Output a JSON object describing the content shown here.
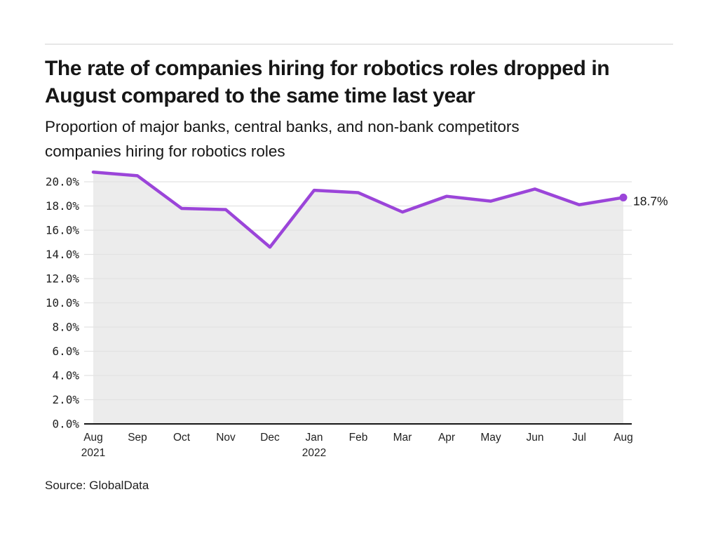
{
  "header": {
    "title": "The rate of companies hiring for robotics roles dropped in\nAugust compared to the same time last year",
    "subtitle": "Proportion of major banks, central banks, and non-bank competitors\ncompanies hiring for robotics roles"
  },
  "chart_data": {
    "type": "area",
    "title": "Proportion of major banks, central banks, and non-bank competitors companies hiring for robotics roles",
    "x": [
      "Aug 2021",
      "Sep",
      "Oct",
      "Nov",
      "Dec",
      "Jan 2022",
      "Feb",
      "Mar",
      "Apr",
      "May",
      "Jun",
      "Jul",
      "Aug"
    ],
    "x_labels": [
      [
        "Aug",
        "2021"
      ],
      [
        "Sep"
      ],
      [
        "Oct"
      ],
      [
        "Nov"
      ],
      [
        "Dec"
      ],
      [
        "Jan",
        "2022"
      ],
      [
        "Feb"
      ],
      [
        "Mar"
      ],
      [
        "Apr"
      ],
      [
        "May"
      ],
      [
        "Jun"
      ],
      [
        "Jul"
      ],
      [
        "Aug"
      ]
    ],
    "values": [
      20.8,
      20.5,
      17.8,
      17.7,
      14.6,
      19.3,
      19.1,
      17.5,
      18.8,
      18.4,
      19.4,
      18.1,
      18.7
    ],
    "end_label": "18.7%",
    "y_ticks": [
      "0.0%",
      "2.0%",
      "4.0%",
      "6.0%",
      "8.0%",
      "10.0%",
      "12.0%",
      "14.0%",
      "16.0%",
      "18.0%",
      "20.0%"
    ],
    "ylim": [
      0,
      22
    ],
    "grid": true,
    "legend": false,
    "line_color": "#9b45d9",
    "area_color": "#ececec",
    "grid_color": "#e2e2e2",
    "axis_color": "#161616"
  },
  "footer": {
    "source": "Source: GlobalData"
  }
}
